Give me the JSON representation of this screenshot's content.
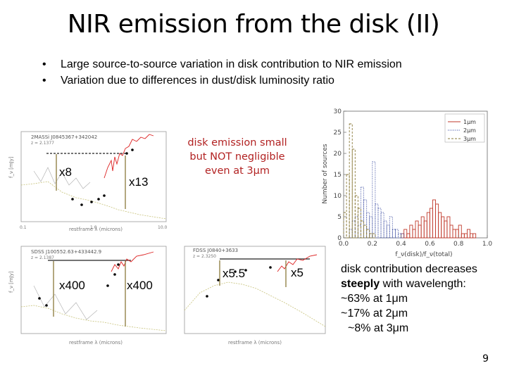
{
  "slide": {
    "title": "NIR emission from the disk (II)",
    "bullets": [
      "Large source-to-source variation in disk contribution to NIR emission",
      "Variation due to differences in dust/disk luminosity ratio"
    ],
    "page_number": "9"
  },
  "panels": [
    {
      "id": "2MASSi J0845367+342042",
      "source_label": "2MASSi J0845367+342042",
      "xlabel": "restframe λ (microns)",
      "ylabel": "f_ν [mJy]",
      "annotations": [
        "x8",
        "x13"
      ]
    },
    {
      "id": "SDSS J100552.63+433442.9",
      "source_label": "SDSS J100552.63+433442.9",
      "xlabel": "restframe λ (microns)",
      "ylabel": "f_ν [mJy]",
      "annotations": [
        "x400",
        "x400"
      ]
    },
    {
      "id": "FDSS J0840+3633",
      "source_label": "FDSS J0840+3633",
      "xlabel": "restframe λ (microns)",
      "ylabel": "",
      "annotations": [
        "x5.5",
        "x5"
      ]
    }
  ],
  "callout": {
    "lines": [
      "disk emission small",
      "but NOT negligible",
      "even at 3μm"
    ],
    "color": "#b22222"
  },
  "summary": {
    "line1": "disk contribution decreases",
    "line2_bold": "steeply",
    "line2_rest": " with wavelength:",
    "items": [
      "~63% at 1μm",
      "~17% at 2μm",
      "~8% at 3μm"
    ]
  },
  "chart_data": {
    "type": "bar",
    "xlabel": "f_ν(disk)/f_ν(total)",
    "ylabel": "Number of sources",
    "xlim": [
      0.0,
      1.0
    ],
    "ylim": [
      0,
      30
    ],
    "xticks": [
      "0.0",
      "0.2",
      "0.4",
      "0.6",
      "0.8",
      "1.0"
    ],
    "yticks": [
      "0",
      "5",
      "10",
      "15",
      "20",
      "25",
      "30"
    ],
    "legend_placement": "top-right",
    "bin_width": 0.02,
    "series": [
      {
        "name": "1μm",
        "color": "#c0392b",
        "style": "solid",
        "x": [
          0.4,
          0.42,
          0.44,
          0.46,
          0.48,
          0.5,
          0.52,
          0.54,
          0.56,
          0.58,
          0.6,
          0.62,
          0.64,
          0.66,
          0.68,
          0.7,
          0.72,
          0.74,
          0.76,
          0.78,
          0.8,
          0.82,
          0.84,
          0.86,
          0.88,
          0.9
        ],
        "values": [
          1,
          2,
          1,
          3,
          2,
          4,
          3,
          5,
          4,
          6,
          7,
          9,
          8,
          6,
          5,
          4,
          5,
          3,
          2,
          2,
          3,
          1,
          1,
          2,
          1,
          1
        ]
      },
      {
        "name": "2μm",
        "color": "#4a5aa8",
        "style": "dotted",
        "x": [
          0.04,
          0.06,
          0.08,
          0.1,
          0.12,
          0.14,
          0.16,
          0.18,
          0.2,
          0.22,
          0.24,
          0.26,
          0.28,
          0.3,
          0.32,
          0.34,
          0.36,
          0.38,
          0.4
        ],
        "values": [
          2,
          4,
          5,
          3,
          12,
          9,
          6,
          5,
          18,
          8,
          7,
          6,
          4,
          3,
          5,
          2,
          2,
          1,
          1
        ]
      },
      {
        "name": "3μm",
        "color": "#8a7a3a",
        "style": "dashed",
        "x": [
          0.0,
          0.02,
          0.04,
          0.06,
          0.08,
          0.1,
          0.12,
          0.14,
          0.16,
          0.18,
          0.2
        ],
        "values": [
          6,
          15,
          27,
          21,
          10,
          7,
          4,
          3,
          2,
          1,
          1
        ]
      }
    ]
  }
}
